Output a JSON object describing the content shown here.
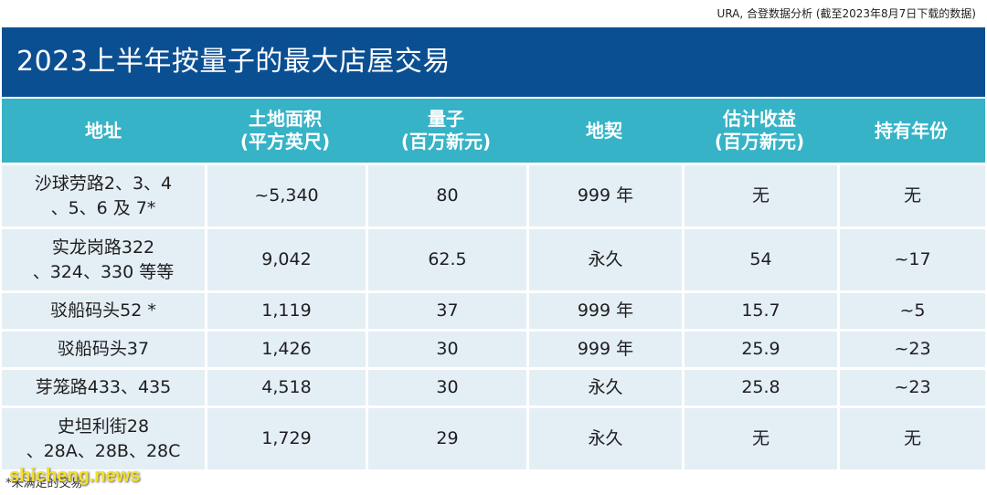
{
  "source": "URA, 合登数据分析 (截至2023年8月7日下载的数据)",
  "title": "2023上半年按量子的最大店屋交易",
  "columns": [
    {
      "line1": "地址",
      "line2": ""
    },
    {
      "line1": "土地面积",
      "line2": "(平方英尺)"
    },
    {
      "line1": "量子",
      "line2": "(百万新元)"
    },
    {
      "line1": "地契",
      "line2": ""
    },
    {
      "line1": "估计收益",
      "line2": "(百万新元)"
    },
    {
      "line1": "持有年份",
      "line2": ""
    }
  ],
  "rows": [
    {
      "address_1": "沙球劳路2、3、4",
      "address_2": "、5、6 及 7*",
      "land_area": "~5,340",
      "quantum": "80",
      "tenure": "999 年",
      "gain": "无",
      "years": "无"
    },
    {
      "address_1": "实龙岗路322",
      "address_2": "、324、330 等等",
      "land_area": "9,042",
      "quantum": "62.5",
      "tenure": "永久",
      "gain": "54",
      "years": "~17"
    },
    {
      "address_1": "驳船码头52 *",
      "address_2": "",
      "land_area": "1,119",
      "quantum": "37",
      "tenure": "999 年",
      "gain": "15.7",
      "years": "~5"
    },
    {
      "address_1": "驳船码头37",
      "address_2": "",
      "land_area": "1,426",
      "quantum": "30",
      "tenure": "999 年",
      "gain": "25.9",
      "years": "~23"
    },
    {
      "address_1": "芽笼路433、435",
      "address_2": "",
      "land_area": "4,518",
      "quantum": "30",
      "tenure": "永久",
      "gain": "25.8",
      "years": "~23"
    },
    {
      "address_1": "史坦利街28",
      "address_2": "、28A、28B、28C",
      "land_area": "1,729",
      "quantum": "29",
      "tenure": "永久",
      "gain": "无",
      "years": "无"
    }
  ],
  "footnote": "*未满足的交易",
  "watermark": "shicheng.news"
}
